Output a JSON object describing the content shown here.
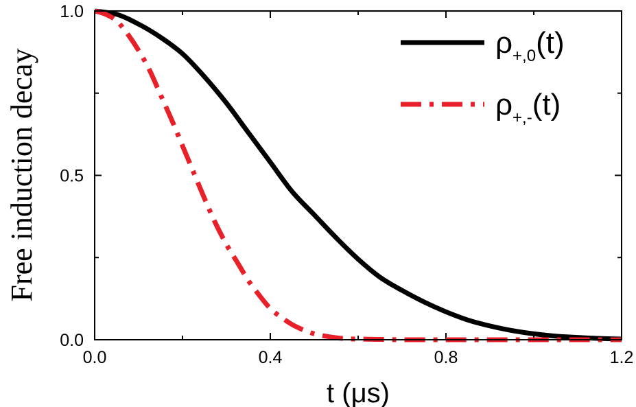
{
  "chart_data": {
    "type": "line",
    "title": "",
    "xlabel": "t (μs)",
    "ylabel": "Free induction decay",
    "xlim": [
      0.0,
      1.2
    ],
    "ylim": [
      0.0,
      1.0
    ],
    "x_ticks": [
      "0.0",
      "0.4",
      "0.8",
      "1.2"
    ],
    "y_ticks": [
      "0.0",
      "0.5",
      "1.0"
    ],
    "grid": false,
    "legend_position": "top-right",
    "series": [
      {
        "name": "ρ+,0(t)",
        "legend_main": "ρ",
        "legend_sub": "+,0",
        "legend_tail": "(t)",
        "color": "#000000",
        "style": "solid",
        "x": [
          0.0,
          0.05,
          0.1,
          0.15,
          0.2,
          0.25,
          0.3,
          0.35,
          0.4,
          0.45,
          0.5,
          0.55,
          0.6,
          0.65,
          0.7,
          0.75,
          0.8,
          0.85,
          0.9,
          0.95,
          1.0,
          1.05,
          1.1,
          1.15,
          1.2
        ],
        "y": [
          1.0,
          0.99,
          0.96,
          0.92,
          0.87,
          0.8,
          0.72,
          0.63,
          0.54,
          0.45,
          0.38,
          0.31,
          0.245,
          0.19,
          0.15,
          0.115,
          0.085,
          0.06,
          0.042,
          0.028,
          0.018,
          0.011,
          0.007,
          0.004,
          0.002
        ]
      },
      {
        "name": "ρ+,-(t)",
        "legend_main": "ρ",
        "legend_sub": "+,-",
        "legend_tail": "(t)",
        "color": "#e8202a",
        "style": "dashdot",
        "x": [
          0.0,
          0.025,
          0.05,
          0.075,
          0.1,
          0.125,
          0.15,
          0.175,
          0.2,
          0.225,
          0.25,
          0.275,
          0.3,
          0.325,
          0.35,
          0.375,
          0.4,
          0.425,
          0.45,
          0.475,
          0.5,
          0.525,
          0.55,
          0.575,
          0.6,
          0.65,
          0.7,
          0.8,
          0.9,
          1.0,
          1.1,
          1.2
        ],
        "y": [
          1.0,
          0.99,
          0.97,
          0.93,
          0.88,
          0.82,
          0.745,
          0.67,
          0.59,
          0.51,
          0.43,
          0.355,
          0.29,
          0.235,
          0.18,
          0.135,
          0.095,
          0.068,
          0.046,
          0.03,
          0.018,
          0.011,
          0.006,
          0.003,
          0.002,
          0.001,
          0.0,
          0.0,
          0.0,
          0.0,
          0.0,
          0.0
        ]
      }
    ]
  }
}
